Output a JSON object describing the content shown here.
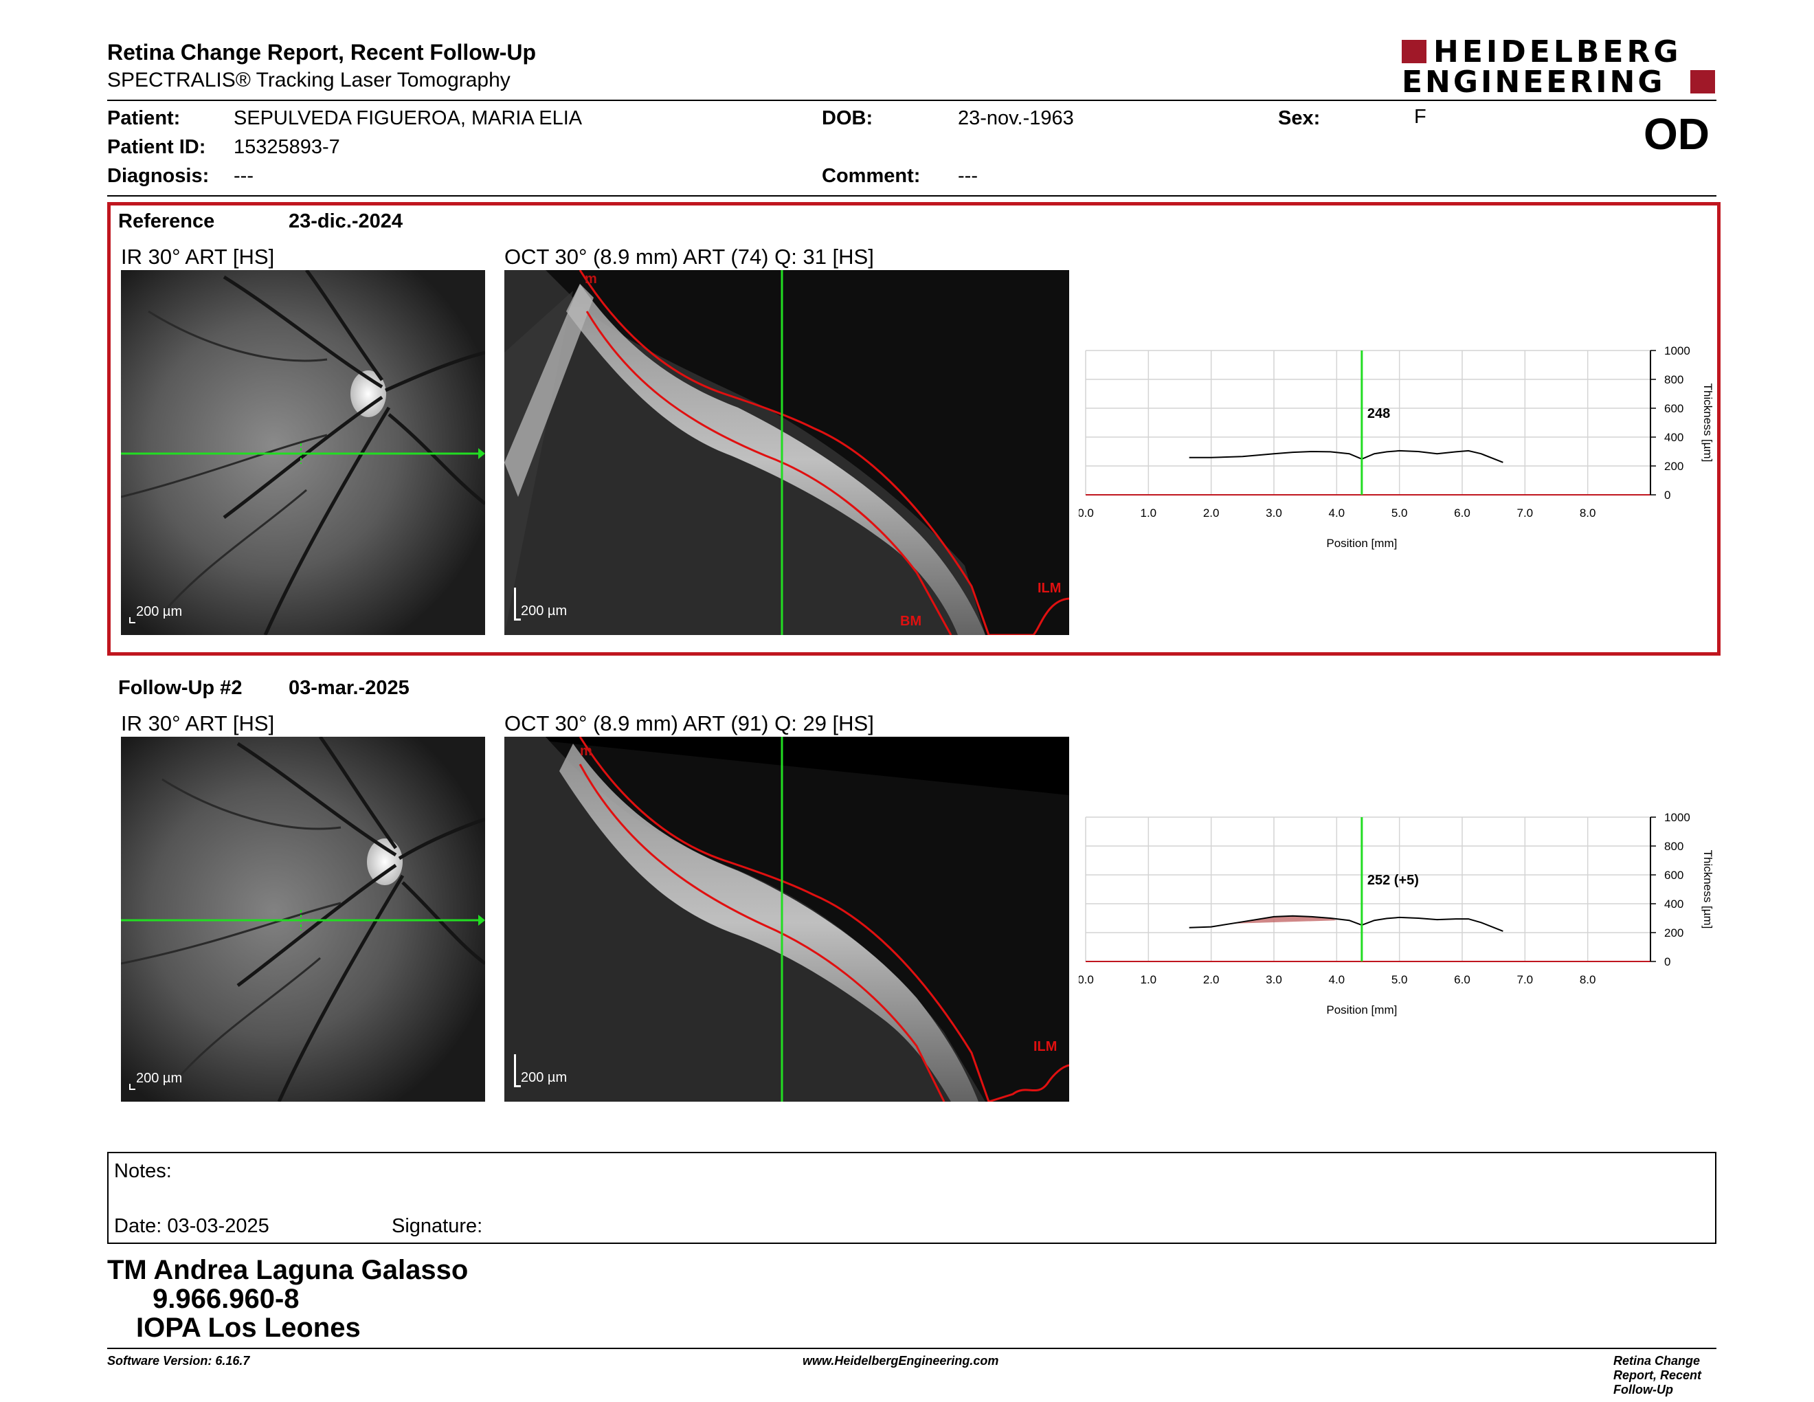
{
  "header": {
    "title": "Retina Change Report, Recent Follow-Up",
    "subtitle": "SPECTRALIS® Tracking Laser Tomography",
    "logo_line1": "HEIDELBERG",
    "logo_line2": "ENGINEERING"
  },
  "patient": {
    "patient_label": "Patient:",
    "patient_value": "SEPULVEDA FIGUEROA, MARIA ELIA",
    "id_label": "Patient ID:",
    "id_value": "15325893-7",
    "diagnosis_label": "Diagnosis:",
    "diagnosis_value": "---",
    "dob_label": "DOB:",
    "dob_value": "23-nov.-1963",
    "comment_label": "Comment:",
    "comment_value": "---",
    "sex_label": "Sex:",
    "sex_value": "F",
    "eye": "OD"
  },
  "colors": {
    "reference_frame": "#c0161f",
    "scan_line": "#22dd22",
    "segmentation": "#e01010",
    "logo": "#a01828"
  },
  "reference": {
    "label": "Reference",
    "date": "23-dic.-2024",
    "ir_title": "IR 30° ART [HS]",
    "oct_title": "OCT 30° (8.9 mm) ART (74) Q: 31 [HS]",
    "ir_scale": "200 µm",
    "oct_scale": "200 µm",
    "layer_top": "m",
    "layer_ilm": "ILM",
    "layer_bm": "BM"
  },
  "followup": {
    "label": "Follow-Up #2",
    "date": "03-mar.-2025",
    "ir_title": "IR 30° ART [HS]",
    "oct_title": "OCT 30° (8.9 mm) ART (91) Q: 29 [HS]",
    "ir_scale": "200 µm",
    "oct_scale": "200 µm",
    "layer_top": "m",
    "layer_ilm": "ILM"
  },
  "chart_data": [
    {
      "type": "line",
      "xlabel": "Position [mm]",
      "ylabel": "Thickness [µm]",
      "xlim": [
        0,
        9
      ],
      "ylim": [
        0,
        1000
      ],
      "x_ticks": [
        "0.0",
        "1.0",
        "2.0",
        "3.0",
        "4.0",
        "5.0",
        "6.0",
        "7.0",
        "8.0"
      ],
      "y_ticks": [
        "0",
        "200",
        "400",
        "600",
        "800",
        "1000"
      ],
      "grid": true,
      "cursor_x": 4.4,
      "cursor_label": "248",
      "series": [
        {
          "x": [
            1.65,
            2.0,
            2.5,
            3.0,
            3.3,
            3.6,
            3.9,
            4.2,
            4.4,
            4.6,
            4.8,
            5.0,
            5.3,
            5.6,
            5.9,
            6.1,
            6.3,
            6.65
          ],
          "values": [
            258,
            258,
            265,
            285,
            295,
            300,
            298,
            285,
            248,
            285,
            298,
            305,
            300,
            285,
            298,
            305,
            285,
            225
          ]
        }
      ]
    },
    {
      "type": "line",
      "xlabel": "Position [mm]",
      "ylabel": "Thickness [µm]",
      "xlim": [
        0,
        9
      ],
      "ylim": [
        0,
        1000
      ],
      "x_ticks": [
        "0.0",
        "1.0",
        "2.0",
        "3.0",
        "4.0",
        "5.0",
        "6.0",
        "7.0",
        "8.0"
      ],
      "y_ticks": [
        "0",
        "200",
        "400",
        "600",
        "800",
        "1000"
      ],
      "grid": true,
      "cursor_x": 4.4,
      "cursor_label": "252 (+5)",
      "series": [
        {
          "x": [
            1.65,
            2.0,
            2.5,
            3.0,
            3.3,
            3.6,
            3.9,
            4.2,
            4.4,
            4.6,
            4.8,
            5.0,
            5.3,
            5.6,
            5.9,
            6.1,
            6.3,
            6.65
          ],
          "values": [
            235,
            240,
            275,
            310,
            315,
            310,
            300,
            285,
            252,
            285,
            298,
            305,
            300,
            290,
            295,
            295,
            270,
            210
          ]
        }
      ]
    }
  ],
  "notes": {
    "notes_label": "Notes:",
    "date_label": "Date: 03-03-2025",
    "signature_label": "Signature:"
  },
  "signature_block": {
    "line1": "TM Andrea Laguna Galasso",
    "line2": "9.966.960-8",
    "line3": "IOPA Los Leones"
  },
  "footer": {
    "software": "Software Version: 6.16.7",
    "website": "www.HeidelbergEngineering.com",
    "report": "Retina Change Report, Recent Follow-Up"
  }
}
